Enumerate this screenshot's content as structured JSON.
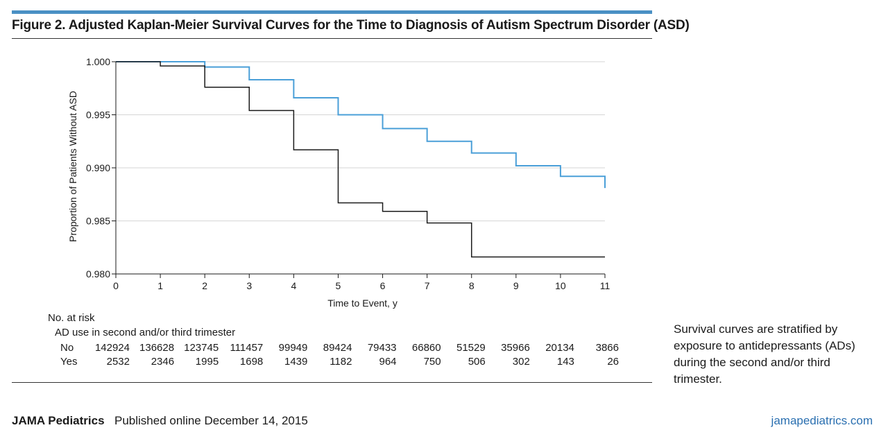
{
  "figure": {
    "title": "Figure 2. Adjusted Kaplan-Meier Survival Curves for the Time to Diagnosis of Autism Spectrum Disorder (ASD)",
    "caption": "Survival curves are stratified by exposure to antidepressants (ADs) during the second and/or third trimester."
  },
  "chart_data": {
    "type": "line",
    "step": true,
    "xlabel": "Time to Event, y",
    "ylabel": "Proportion of Patients Without ASD",
    "xlim": [
      0,
      11
    ],
    "ylim": [
      0.98,
      1.0
    ],
    "x_ticks": [
      "0",
      "1",
      "2",
      "3",
      "4",
      "5",
      "6",
      "7",
      "8",
      "9",
      "10",
      "11"
    ],
    "y_ticks": [
      "1.000",
      "0.995",
      "0.990",
      "0.985",
      "0.980"
    ],
    "grid": "horizontal",
    "colors": {
      "exposed": "#1a1a1a",
      "unexposed": "#4a9fd8"
    },
    "series": [
      {
        "color": "#4a9fd8",
        "x": [
          0,
          1,
          2,
          3,
          4,
          5,
          6,
          7,
          8,
          9,
          10,
          11
        ],
        "y": [
          1.0,
          1.0,
          0.9995,
          0.9983,
          0.9966,
          0.995,
          0.9937,
          0.9925,
          0.9914,
          0.9902,
          0.9892,
          0.9881
        ]
      },
      {
        "color": "#1a1a1a",
        "x": [
          0,
          1,
          2,
          3,
          4,
          5,
          6,
          7,
          8,
          11
        ],
        "y": [
          1.0,
          0.9996,
          0.9976,
          0.9954,
          0.9917,
          0.9867,
          0.9859,
          0.9848,
          0.9816,
          0.9816
        ]
      }
    ]
  },
  "risk_table": {
    "heading": "No. at risk",
    "subheading": "AD use in second and/or third trimester",
    "rows": [
      {
        "label": "No",
        "values": [
          "142924",
          "136628",
          "123745",
          "111457",
          "99949",
          "89424",
          "79433",
          "66860",
          "51529",
          "35966",
          "20134",
          "3866"
        ]
      },
      {
        "label": "Yes",
        "values": [
          "2532",
          "2346",
          "1995",
          "1698",
          "1439",
          "1182",
          "964",
          "750",
          "506",
          "302",
          "143",
          "26"
        ]
      }
    ]
  },
  "footer": {
    "journal": "JAMA Pediatrics",
    "published": "Published online December 14, 2015",
    "url": "jamapediatrics.com"
  }
}
